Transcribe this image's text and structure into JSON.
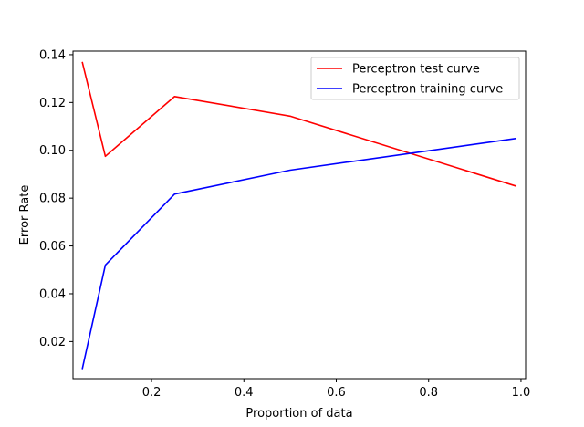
{
  "chart_data": {
    "type": "line",
    "title": "",
    "xlabel": "Proportion of data",
    "ylabel": "Error Rate",
    "xlim": [
      0.03,
      1.01
    ],
    "ylim": [
      0.0045,
      0.1415
    ],
    "xticks": [
      0.2,
      0.4,
      0.6,
      0.8,
      1.0
    ],
    "xtick_labels": [
      "0.2",
      "0.4",
      "0.6",
      "0.8",
      "1.0"
    ],
    "yticks": [
      0.02,
      0.04,
      0.06,
      0.08,
      0.1,
      0.12,
      0.14
    ],
    "ytick_labels": [
      "0.02",
      "0.04",
      "0.06",
      "0.08",
      "0.10",
      "0.12",
      "0.14"
    ],
    "grid": false,
    "legend_position": "top-right",
    "series": [
      {
        "name": "Perceptron test curve",
        "color": "#ff0000",
        "x": [
          0.05,
          0.1,
          0.25,
          0.5,
          0.99
        ],
        "y": [
          0.137,
          0.0975,
          0.1225,
          0.1143,
          0.085
        ]
      },
      {
        "name": "Perceptron training curve",
        "color": "#0000ff",
        "x": [
          0.05,
          0.1,
          0.25,
          0.5,
          0.99
        ],
        "y": [
          0.0085,
          0.052,
          0.0817,
          0.0917,
          0.105
        ]
      }
    ]
  }
}
